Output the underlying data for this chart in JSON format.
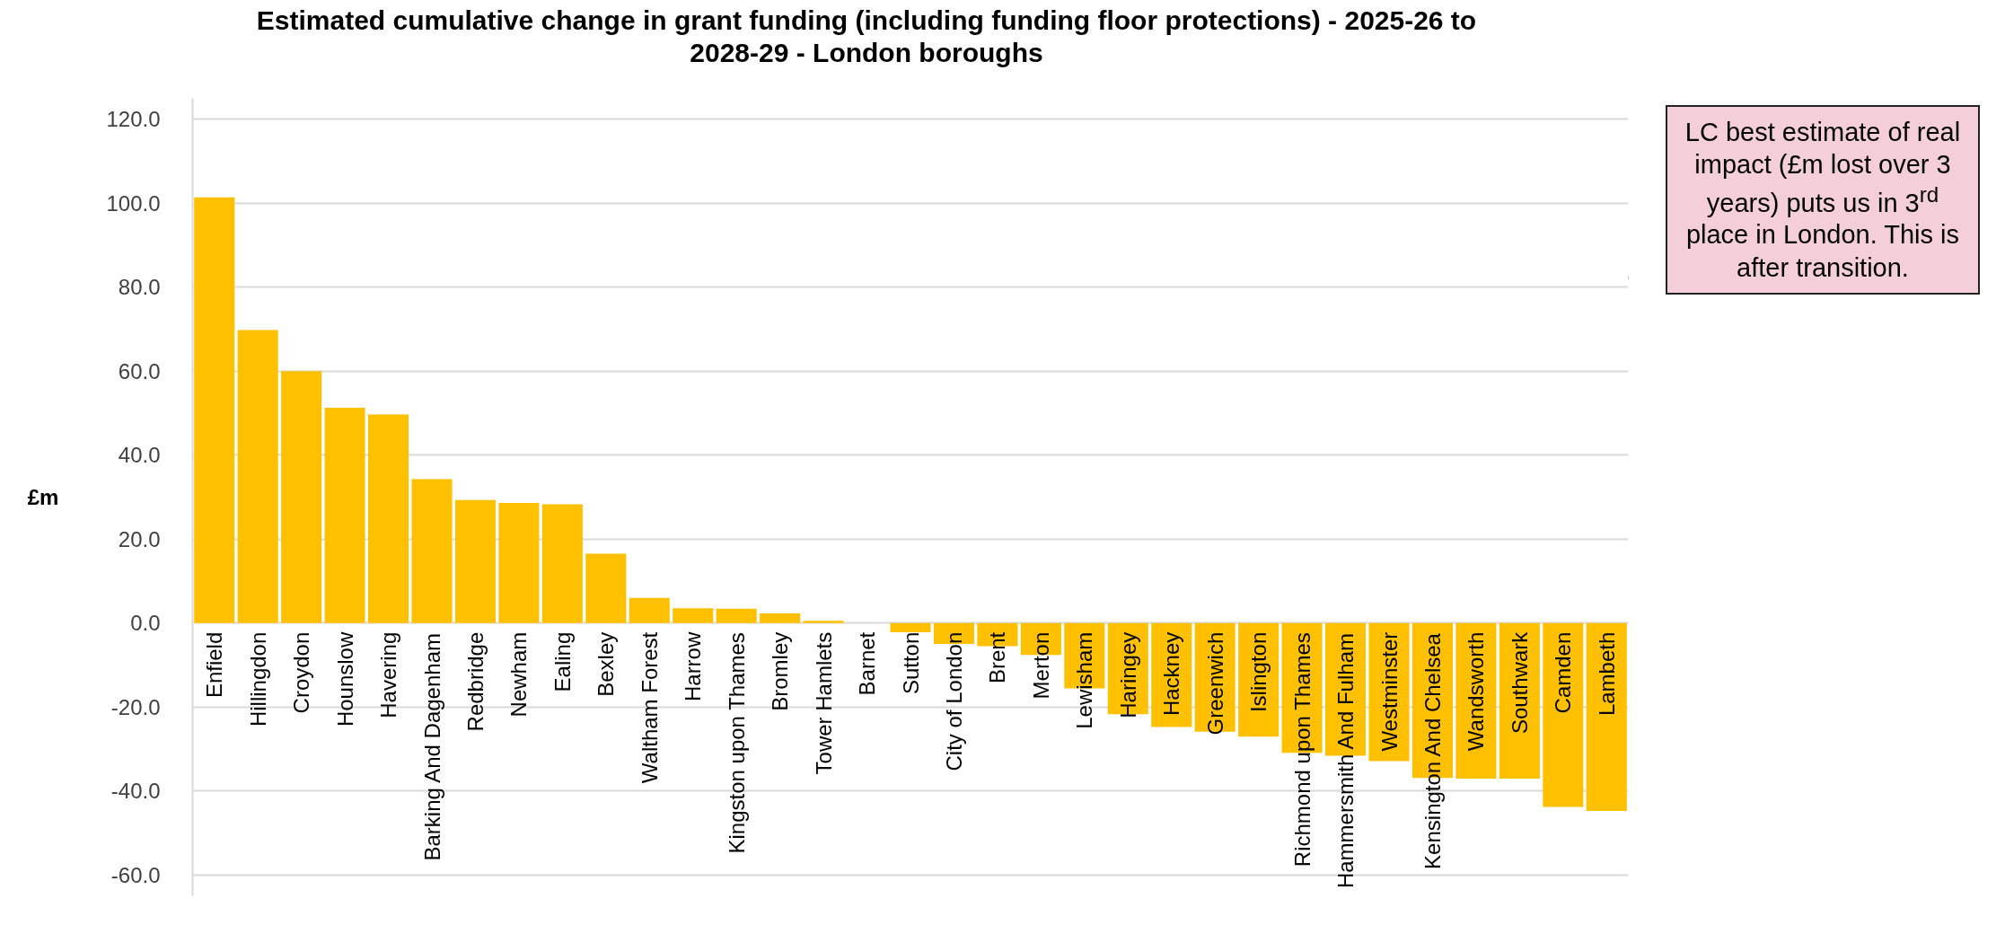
{
  "chart_data": {
    "type": "bar",
    "title": "Estimated cumulative change in grant funding (including funding floor protections) - 2025-26 to 2028-29 - London boroughs",
    "ylabel": "£m",
    "categories": [
      "Enfield",
      "Hillingdon",
      "Croydon",
      "Hounslow",
      "Havering",
      "Barking And Dagenham",
      "Redbridge",
      "Newham",
      "Ealing",
      "Bexley",
      "Waltham Forest",
      "Harrow",
      "Kingston upon Thames",
      "Bromley",
      "Tower Hamlets",
      "Barnet",
      "Sutton",
      "City of London",
      "Brent",
      "Merton",
      "Lewisham",
      "Haringey",
      "Hackney",
      "Greenwich",
      "Islington",
      "Richmond upon Thames",
      "Hammersmith And Fulham",
      "Westminster",
      "Kensington And Chelsea",
      "Wandsworth",
      "Southwark",
      "Camden",
      "Lambeth"
    ],
    "values": [
      101.4,
      69.8,
      60.0,
      51.3,
      49.7,
      34.3,
      29.3,
      28.6,
      28.3,
      16.5,
      6.0,
      3.5,
      3.4,
      2.3,
      0.5,
      0.0,
      -2.2,
      -5.0,
      -5.5,
      -7.6,
      -15.6,
      -21.7,
      -24.8,
      -25.9,
      -27.1,
      -30.9,
      -31.6,
      -32.9,
      -36.9,
      -37.1,
      -37.1,
      -43.8,
      -44.8
    ],
    "color": "#ffc000",
    "ylim": [
      -65,
      125
    ],
    "yticks": [
      {
        "value": -60,
        "label": "-60.0"
      },
      {
        "value": -40,
        "label": "-40.0"
      },
      {
        "value": -20,
        "label": "-20.0"
      },
      {
        "value": 0,
        "label": "0.0"
      },
      {
        "value": 20,
        "label": "20.0"
      },
      {
        "value": 40,
        "label": "40.0"
      },
      {
        "value": 60,
        "label": "60.0"
      },
      {
        "value": 80,
        "label": "80.0"
      },
      {
        "value": 100,
        "label": "100.0"
      },
      {
        "value": 120,
        "label": "120.0"
      }
    ],
    "grid": "y",
    "annotations": [
      "LC best estimate of real impact (£m lost over 3 years) puts us in 3$^{rd}$ place in London. This is after transition."
    ]
  }
}
